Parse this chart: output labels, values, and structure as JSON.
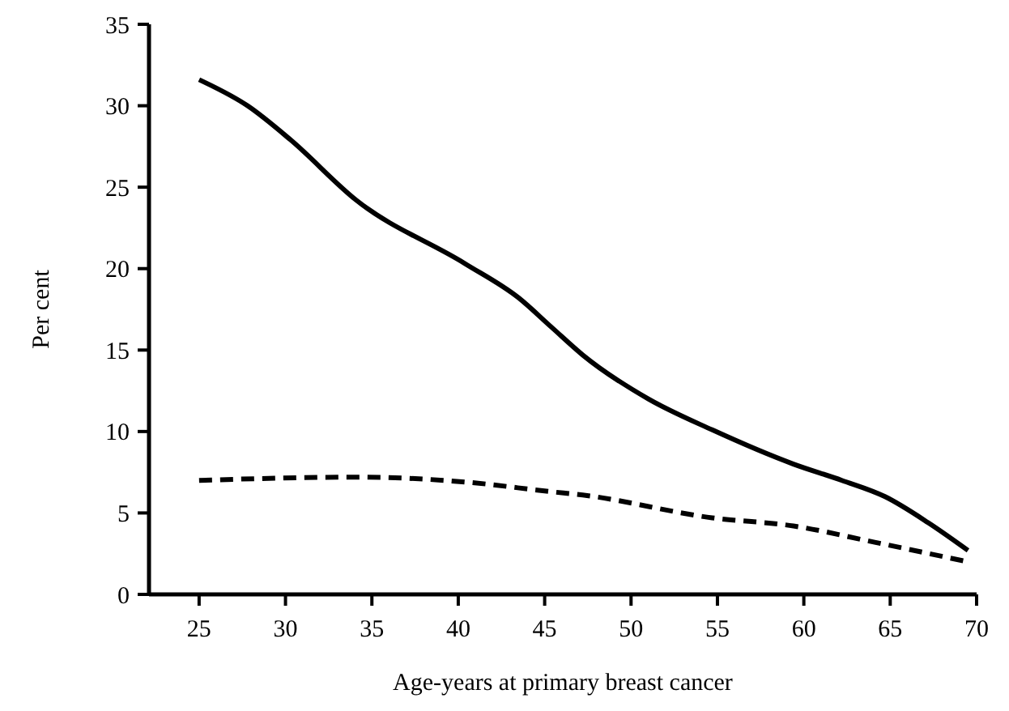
{
  "chart_data": {
    "type": "line",
    "xlabel": "Age-years at primary breast cancer",
    "ylabel": "Per cent",
    "xlim": [
      22.1,
      70
    ],
    "xticks": [
      25,
      30,
      35,
      40,
      45,
      50,
      55,
      60,
      65,
      70
    ],
    "ylim": [
      0,
      35
    ],
    "yticks": [
      0,
      5,
      10,
      15,
      20,
      25,
      30,
      35
    ],
    "grid": false,
    "marker": "none",
    "series": [
      {
        "color": "#000000",
        "line_style": "solid",
        "x": [
          25,
          27.8,
          30.3,
          34.1,
          40.4,
          43.5,
          45.4,
          47.2,
          51,
          54.7,
          59.4,
          62.2,
          64.7,
          67.2,
          69.5
        ],
        "values": [
          31.6,
          30.0,
          27.9,
          24.2,
          20.3,
          18.2,
          16.4,
          14.7,
          12.0,
          10.1,
          8.0,
          7.0,
          6.0,
          4.4,
          2.7
        ]
      },
      {
        "color": "#000000",
        "line_style": "dashed",
        "x": [
          25,
          34.1,
          40.4,
          45.4,
          47.2,
          54.7,
          59.4,
          64.1,
          69.5
        ],
        "values": [
          7.0,
          7.2,
          6.9,
          6.3,
          6.1,
          4.7,
          4.2,
          3.2,
          2.0
        ]
      }
    ]
  }
}
